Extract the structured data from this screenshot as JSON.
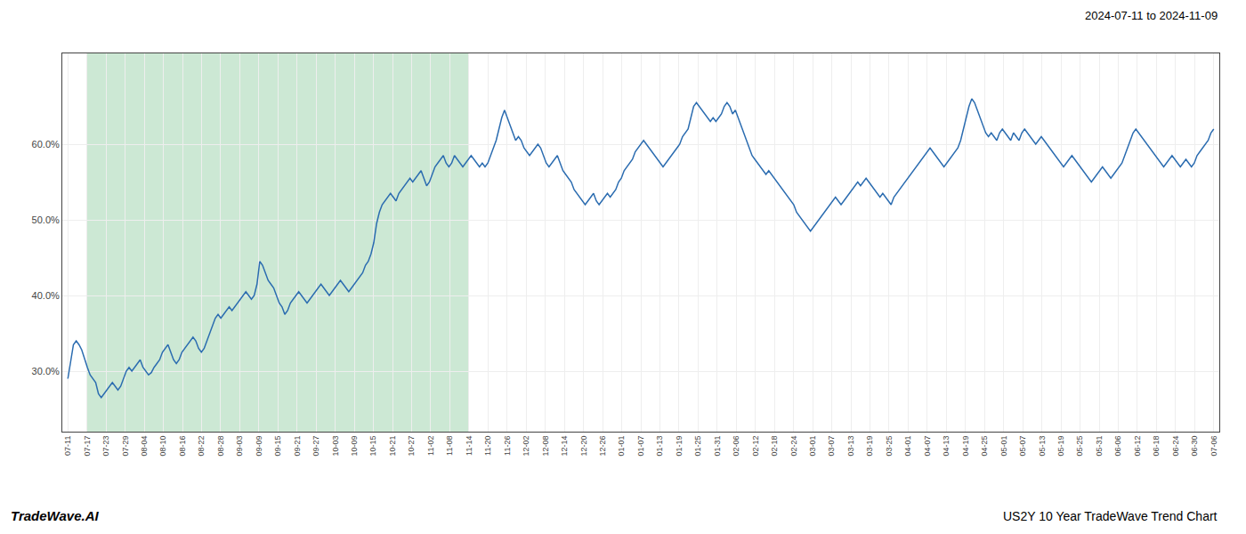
{
  "chart_data": {
    "type": "line",
    "annotations": [
      "2024-07-11 to 2024-11-09",
      "TradeWave.AI",
      "US2Y 10 Year TradeWave Trend Chart"
    ],
    "color": "#2b6cb0",
    "grid": true,
    "shaded_region": {
      "start": "07-17",
      "end": "11-14",
      "color": "#cce8d4"
    },
    "ylim": [
      22,
      72
    ],
    "yticks": [
      {
        "value": 30.0,
        "label": "30.0%"
      },
      {
        "value": 40.0,
        "label": "40.0%"
      },
      {
        "value": 50.0,
        "label": "50.0%"
      },
      {
        "value": 60.0,
        "label": "60.0%"
      }
    ],
    "xtick_labels": [
      "07-11",
      "07-17",
      "07-23",
      "07-29",
      "08-04",
      "08-10",
      "08-16",
      "08-22",
      "08-28",
      "09-03",
      "09-09",
      "09-15",
      "09-21",
      "09-27",
      "10-03",
      "10-09",
      "10-15",
      "10-21",
      "10-27",
      "11-02",
      "11-08",
      "11-14",
      "11-20",
      "11-26",
      "12-02",
      "12-08",
      "12-14",
      "12-20",
      "12-26",
      "01-01",
      "01-07",
      "01-13",
      "01-19",
      "01-25",
      "01-31",
      "02-06",
      "02-12",
      "02-18",
      "02-24",
      "03-01",
      "03-07",
      "03-13",
      "03-19",
      "03-25",
      "04-01",
      "04-07",
      "04-13",
      "04-19",
      "04-25",
      "05-01",
      "05-07",
      "05-13",
      "05-19",
      "05-25",
      "05-31",
      "06-06",
      "06-12",
      "06-18",
      "06-24",
      "06-30",
      "07-06"
    ],
    "values": [
      29.0,
      31.5,
      33.5,
      34.0,
      33.5,
      32.8,
      31.5,
      30.5,
      29.5,
      29.0,
      28.5,
      27.0,
      26.5,
      27.0,
      27.5,
      28.0,
      28.5,
      28.0,
      27.5,
      28.0,
      29.0,
      30.0,
      30.5,
      30.0,
      30.5,
      31.0,
      31.5,
      30.5,
      30.0,
      29.5,
      29.8,
      30.5,
      31.0,
      31.5,
      32.5,
      33.0,
      33.5,
      32.5,
      31.5,
      31.0,
      31.5,
      32.5,
      33.0,
      33.5,
      34.0,
      34.5,
      34.0,
      33.0,
      32.5,
      33.0,
      34.0,
      35.0,
      36.0,
      37.0,
      37.5,
      37.0,
      37.5,
      38.0,
      38.5,
      38.0,
      38.5,
      39.0,
      39.5,
      40.0,
      40.5,
      40.0,
      39.5,
      40.0,
      41.5,
      44.5,
      44.0,
      43.0,
      42.0,
      41.5,
      41.0,
      40.0,
      39.0,
      38.5,
      37.5,
      38.0,
      39.0,
      39.5,
      40.0,
      40.5,
      40.0,
      39.5,
      39.0,
      39.5,
      40.0,
      40.5,
      41.0,
      41.5,
      41.0,
      40.5,
      40.0,
      40.5,
      41.0,
      41.5,
      42.0,
      41.5,
      41.0,
      40.5,
      41.0,
      41.5,
      42.0,
      42.5,
      43.0,
      44.0,
      44.5,
      45.5,
      47.0,
      49.5,
      51.0,
      52.0,
      52.5,
      53.0,
      53.5,
      53.0,
      52.5,
      53.5,
      54.0,
      54.5,
      55.0,
      55.5,
      55.0,
      55.5,
      56.0,
      56.5,
      55.5,
      54.5,
      55.0,
      56.0,
      57.0,
      57.5,
      58.0,
      58.5,
      57.5,
      57.0,
      57.5,
      58.5,
      58.0,
      57.5,
      57.0,
      57.5,
      58.0,
      58.5,
      58.0,
      57.5,
      57.0,
      57.5,
      57.0,
      57.5,
      58.5,
      59.5,
      60.5,
      62.0,
      63.5,
      64.5,
      63.5,
      62.5,
      61.5,
      60.5,
      61.0,
      60.5,
      59.5,
      59.0,
      58.5,
      59.0,
      59.5,
      60.0,
      59.5,
      58.5,
      57.5,
      57.0,
      57.5,
      58.0,
      58.5,
      57.5,
      56.5,
      56.0,
      55.5,
      55.0,
      54.0,
      53.5,
      53.0,
      52.5,
      52.0,
      52.5,
      53.0,
      53.5,
      52.5,
      52.0,
      52.5,
      53.0,
      53.5,
      53.0,
      53.5,
      54.0,
      55.0,
      55.5,
      56.5,
      57.0,
      57.5,
      58.0,
      59.0,
      59.5,
      60.0,
      60.5,
      60.0,
      59.5,
      59.0,
      58.5,
      58.0,
      57.5,
      57.0,
      57.5,
      58.0,
      58.5,
      59.0,
      59.5,
      60.0,
      61.0,
      61.5,
      62.0,
      63.5,
      65.0,
      65.5,
      65.0,
      64.5,
      64.0,
      63.5,
      63.0,
      63.5,
      63.0,
      63.5,
      64.0,
      65.0,
      65.5,
      65.0,
      64.0,
      64.5,
      63.5,
      62.5,
      61.5,
      60.5,
      59.5,
      58.5,
      58.0,
      57.5,
      57.0,
      56.5,
      56.0,
      56.5,
      56.0,
      55.5,
      55.0,
      54.5,
      54.0,
      53.5,
      53.0,
      52.5,
      52.0,
      51.0,
      50.5,
      50.0,
      49.5,
      49.0,
      48.5,
      49.0,
      49.5,
      50.0,
      50.5,
      51.0,
      51.5,
      52.0,
      52.5,
      53.0,
      52.5,
      52.0,
      52.5,
      53.0,
      53.5,
      54.0,
      54.5,
      55.0,
      54.5,
      55.0,
      55.5,
      55.0,
      54.5,
      54.0,
      53.5,
      53.0,
      53.5,
      53.0,
      52.5,
      52.0,
      53.0,
      53.5,
      54.0,
      54.5,
      55.0,
      55.5,
      56.0,
      56.5,
      57.0,
      57.5,
      58.0,
      58.5,
      59.0,
      59.5,
      59.0,
      58.5,
      58.0,
      57.5,
      57.0,
      57.5,
      58.0,
      58.5,
      59.0,
      59.5,
      60.5,
      62.0,
      63.5,
      65.0,
      66.0,
      65.5,
      64.5,
      63.5,
      62.5,
      61.5,
      61.0,
      61.5,
      61.0,
      60.5,
      61.5,
      62.0,
      61.5,
      61.0,
      60.5,
      61.5,
      61.0,
      60.5,
      61.5,
      62.0,
      61.5,
      61.0,
      60.5,
      60.0,
      60.5,
      61.0,
      60.5,
      60.0,
      59.5,
      59.0,
      58.5,
      58.0,
      57.5,
      57.0,
      57.5,
      58.0,
      58.5,
      58.0,
      57.5,
      57.0,
      56.5,
      56.0,
      55.5,
      55.0,
      55.5,
      56.0,
      56.5,
      57.0,
      56.5,
      56.0,
      55.5,
      56.0,
      56.5,
      57.0,
      57.5,
      58.5,
      59.5,
      60.5,
      61.5,
      62.0,
      61.5,
      61.0,
      60.5,
      60.0,
      59.5,
      59.0,
      58.5,
      58.0,
      57.5,
      57.0,
      57.5,
      58.0,
      58.5,
      58.0,
      57.5,
      57.0,
      57.5,
      58.0,
      57.5,
      57.0,
      57.5,
      58.5,
      59.0,
      59.5,
      60.0,
      60.5,
      61.5,
      62.0
    ]
  }
}
